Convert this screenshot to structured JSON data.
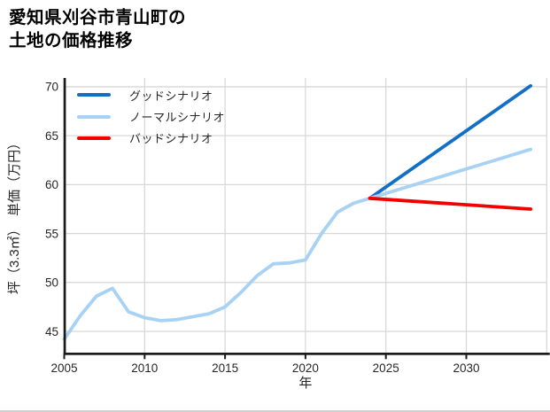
{
  "title": "愛知県刈谷市青山町の\n土地の価格推移",
  "colors": {
    "good": "#1170c5",
    "normal": "#a8d2f4",
    "bad": "#f20000",
    "grid": "#d8d8d8",
    "axis": "#1a1a1a",
    "tick_label": "#262626",
    "background": "#ffffff",
    "bottom_edge": "#cfcfcf"
  },
  "chart_data": {
    "type": "line",
    "title": "愛知県刈谷市青山町の土地の価格推移",
    "xlabel": "年",
    "ylabel": "坪（3.3㎡）　単価（万円）",
    "xlim": [
      2005,
      2035
    ],
    "ylim": [
      42.8,
      70.9
    ],
    "x_ticks": [
      2005,
      2010,
      2015,
      2020,
      2025,
      2030
    ],
    "y_ticks": [
      45,
      50,
      55,
      60,
      65,
      70
    ],
    "grid": true,
    "legend_position": "upper left",
    "history": {
      "color": "#a8d2f4",
      "x": [
        2005,
        2006,
        2007,
        2008,
        2009,
        2010,
        2011,
        2012,
        2013,
        2014,
        2015,
        2016,
        2017,
        2018,
        2019,
        2020,
        2021,
        2022,
        2023,
        2024
      ],
      "values": [
        44.2,
        46.6,
        48.6,
        49.4,
        47.0,
        46.4,
        46.1,
        46.2,
        46.5,
        46.8,
        47.5,
        49.0,
        50.7,
        51.9,
        52.0,
        52.3,
        55.0,
        57.2,
        58.1,
        58.6
      ]
    },
    "series": [
      {
        "name": "グッドシナリオ",
        "color": "#1170c5",
        "x": [
          2024,
          2034
        ],
        "values": [
          58.6,
          70.1
        ]
      },
      {
        "name": "ノーマルシナリオ",
        "color": "#a8d2f4",
        "x": [
          2024,
          2034
        ],
        "values": [
          58.6,
          63.6
        ]
      },
      {
        "name": "バッドシナリオ",
        "color": "#f20000",
        "x": [
          2024,
          2034
        ],
        "values": [
          58.6,
          57.5
        ]
      }
    ]
  }
}
